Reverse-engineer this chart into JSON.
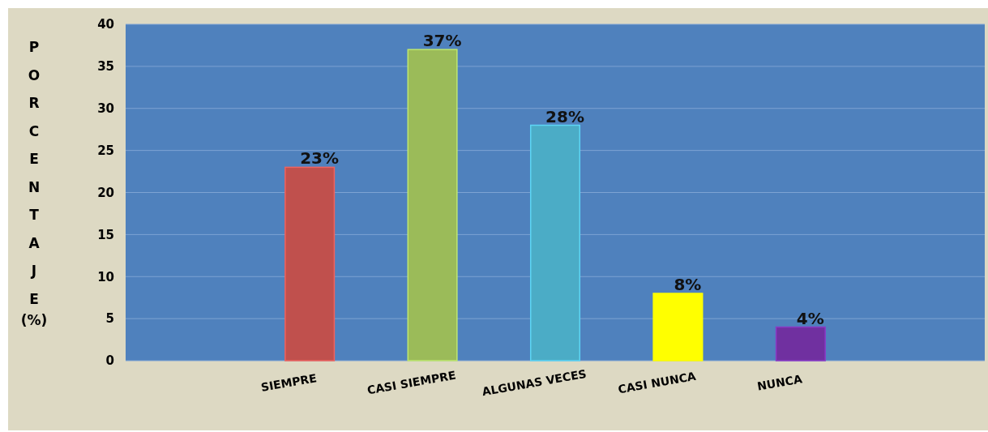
{
  "chart_data": {
    "type": "bar",
    "ylabel": "PORCENTAJE (%)",
    "categories": [
      null,
      "SIEMPRE",
      "CASI SIEMPRE",
      "ALGUNAS VECES",
      "CASI NUNCA",
      "NUNCA",
      null
    ],
    "values": [
      null,
      23,
      37,
      28,
      8,
      4,
      null
    ],
    "colors": [
      null,
      "#c0504d",
      "#9bbb59",
      "#4bacc6",
      "#ffff00",
      "#7030a0",
      null
    ],
    "value_labels": [
      null,
      "23%",
      "37%",
      "28%",
      "8%",
      "4%",
      null
    ],
    "ylim": [
      0,
      40
    ],
    "yticks": [
      0,
      5,
      10,
      15,
      20,
      25,
      30,
      35,
      40
    ],
    "grid": "y"
  }
}
